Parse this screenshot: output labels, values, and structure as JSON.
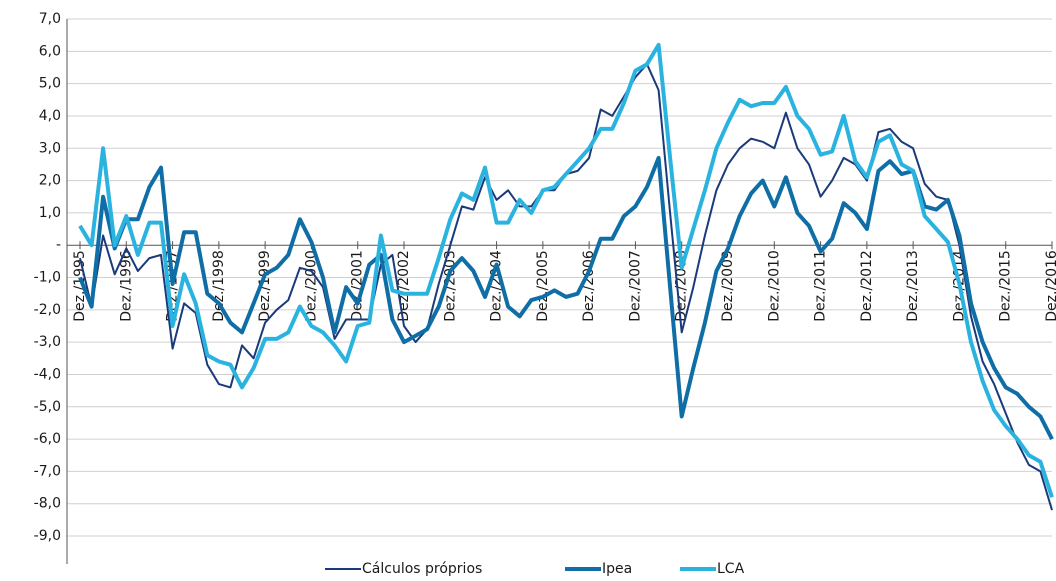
{
  "chart_data": {
    "type": "line",
    "categories": [
      "Dez./1995",
      null,
      null,
      null,
      "Dez./1996",
      null,
      null,
      null,
      "Dez./1997",
      null,
      null,
      null,
      "Dez./1998",
      null,
      null,
      null,
      "Dez./1999",
      null,
      null,
      null,
      "Dez./2000",
      null,
      null,
      null,
      "Dez./2001",
      null,
      null,
      null,
      "Dez./2002",
      null,
      null,
      null,
      "Dez./2003",
      null,
      null,
      null,
      "Dez./2004",
      null,
      null,
      null,
      "Dez./2005",
      null,
      null,
      null,
      "Dez./2006",
      null,
      null,
      null,
      "Dez./2007",
      null,
      null,
      null,
      "Dez./2008",
      null,
      null,
      null,
      "Dez./2009",
      null,
      null,
      null,
      "Dez./2010",
      null,
      null,
      null,
      "Dez./2011",
      null,
      null,
      null,
      "Dez./2012",
      null,
      null,
      null,
      "Dez./2013",
      null,
      null,
      null,
      "Dez./2014",
      null,
      null,
      null,
      "Dez./2015",
      null,
      null,
      null,
      "Dez./2016"
    ],
    "series": [
      {
        "name": "Cálculos próprios",
        "color": "#1b3a7a",
        "width": 2,
        "values": [
          -0.4,
          -1.9,
          0.3,
          -0.9,
          -0.1,
          -0.8,
          -0.4,
          -0.3,
          -3.2,
          -1.8,
          -2.1,
          -3.7,
          -4.3,
          -4.4,
          -3.1,
          -3.5,
          -2.4,
          -2.0,
          -1.7,
          -0.7,
          -0.8,
          -1.3,
          -2.9,
          -2.3,
          -2.3,
          -2.3,
          -0.6,
          -0.3,
          -2.5,
          -3.0,
          -2.6,
          -1.2,
          0.0,
          1.2,
          1.1,
          2.1,
          1.4,
          1.7,
          1.2,
          1.2,
          1.7,
          1.7,
          2.2,
          2.3,
          2.7,
          4.2,
          4.0,
          4.6,
          5.2,
          5.6,
          4.8,
          1.0,
          -2.7,
          -1.3,
          0.3,
          1.7,
          2.5,
          3.0,
          3.3,
          3.2,
          3.0,
          4.1,
          3.0,
          2.5,
          1.5,
          2.0,
          2.7,
          2.5,
          2.0,
          3.5,
          3.6,
          3.2,
          3.0,
          1.9,
          1.5,
          1.4,
          0.0,
          -2.2,
          -3.6,
          -4.3,
          -5.2,
          -6.1,
          -6.8,
          -7.0,
          -8.2
        ]
      },
      {
        "name": "Ipea",
        "color": "#0f6ea6",
        "width": 4,
        "values": [
          -1.0,
          -1.9,
          1.5,
          -0.1,
          0.8,
          0.8,
          1.8,
          2.4,
          -1.2,
          0.4,
          0.4,
          -1.5,
          -1.8,
          -2.4,
          -2.7,
          -1.8,
          -0.9,
          -0.7,
          -0.3,
          0.8,
          0.1,
          -1.0,
          -2.7,
          -1.3,
          -1.8,
          -0.6,
          -0.3,
          -2.3,
          -3.0,
          -2.8,
          -2.6,
          -1.9,
          -0.8,
          -0.4,
          -0.8,
          -1.6,
          -0.6,
          -1.9,
          -2.2,
          -1.7,
          -1.6,
          -1.4,
          -1.6,
          -1.5,
          -0.8,
          0.2,
          0.2,
          0.9,
          1.2,
          1.8,
          2.7,
          -1.3,
          -5.3,
          -3.8,
          -2.4,
          -0.8,
          -0.1,
          0.9,
          1.6,
          2.0,
          1.2,
          2.1,
          1.0,
          0.6,
          -0.2,
          0.2,
          1.3,
          1.0,
          0.5,
          2.3,
          2.6,
          2.2,
          2.3,
          1.2,
          1.1,
          1.4,
          0.3,
          -1.8,
          -3.0,
          -3.8,
          -4.4,
          -4.6,
          -5.0,
          -5.3,
          -6.0
        ]
      },
      {
        "name": "LCA",
        "color": "#2bb3e0",
        "width": 4,
        "values": [
          0.6,
          0.0,
          3.0,
          0.0,
          0.9,
          -0.3,
          0.7,
          0.7,
          -2.5,
          -0.9,
          -1.8,
          -3.4,
          -3.6,
          -3.7,
          -4.4,
          -3.8,
          -2.9,
          -2.9,
          -2.7,
          -1.9,
          -2.5,
          -2.7,
          -3.1,
          -3.6,
          -2.5,
          -2.4,
          0.3,
          -1.4,
          -1.5,
          -1.5,
          -1.5,
          -0.4,
          0.8,
          1.6,
          1.4,
          2.4,
          0.7,
          0.7,
          1.4,
          1.0,
          1.7,
          1.8,
          2.2,
          2.6,
          3.0,
          3.6,
          3.6,
          4.4,
          5.4,
          5.6,
          6.2,
          2.7,
          -0.7,
          0.5,
          1.7,
          3.0,
          3.8,
          4.5,
          4.3,
          4.4,
          4.4,
          4.9,
          4.0,
          3.6,
          2.8,
          2.9,
          4.0,
          2.6,
          2.1,
          3.2,
          3.4,
          2.5,
          2.3,
          0.9,
          0.5,
          0.1,
          -1.2,
          -3.0,
          -4.2,
          -5.1,
          -5.6,
          -6.0,
          -6.5,
          -6.7,
          -7.8
        ]
      }
    ],
    "ylim": [
      -9,
      7
    ],
    "yticks": [
      {
        "value": 7,
        "label": "7,0"
      },
      {
        "value": 6,
        "label": "6,0"
      },
      {
        "value": 5,
        "label": "5,0"
      },
      {
        "value": 4,
        "label": "4,0"
      },
      {
        "value": 3,
        "label": "3,0"
      },
      {
        "value": 2,
        "label": "2,0"
      },
      {
        "value": 1,
        "label": "1,0"
      },
      {
        "value": 0,
        "label": "-"
      },
      {
        "value": -1,
        "label": "-1,0"
      },
      {
        "value": -2,
        "label": "-2,0"
      },
      {
        "value": -3,
        "label": "-3,0"
      },
      {
        "value": -4,
        "label": "-4,0"
      },
      {
        "value": -5,
        "label": "-5,0"
      },
      {
        "value": -6,
        "label": "-6,0"
      },
      {
        "value": -7,
        "label": "-7,0"
      },
      {
        "value": -8,
        "label": "-8,0"
      },
      {
        "value": -9,
        "label": "-9,0"
      }
    ],
    "grid": true
  }
}
